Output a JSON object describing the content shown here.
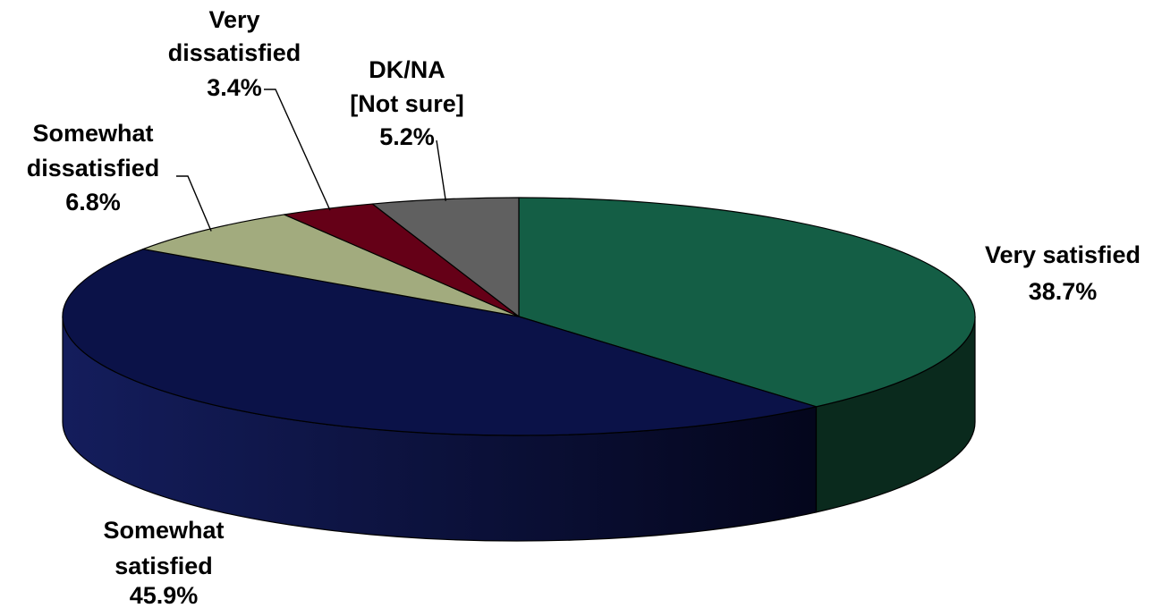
{
  "chart_data": {
    "type": "pie",
    "title": "",
    "three_d": true,
    "slices": [
      {
        "label_lines": [
          "Very satisfied"
        ],
        "value_text": "38.7%",
        "value": 38.7,
        "color": "#145E45",
        "side_color": "#0A2A1D"
      },
      {
        "label_lines": [
          "Somewhat",
          "satisfied"
        ],
        "value_text": "45.9%",
        "value": 45.9,
        "color": "#0B1248",
        "side_color": "#101A58"
      },
      {
        "label_lines": [
          "Somewhat",
          "dissatisfied"
        ],
        "value_text": "6.8%",
        "value": 6.8,
        "color": "#A2AB7E",
        "side_color": "#6F764F"
      },
      {
        "label_lines": [
          "Very",
          "dissatisfied"
        ],
        "value_text": "3.4%",
        "value": 3.4,
        "color": "#650017",
        "side_color": "#3D000E"
      },
      {
        "label_lines": [
          "DK/NA",
          "[Not sure]"
        ],
        "value_text": "5.2%",
        "value": 5.2,
        "color": "#606060",
        "side_color": "#3A3A3A"
      }
    ]
  }
}
